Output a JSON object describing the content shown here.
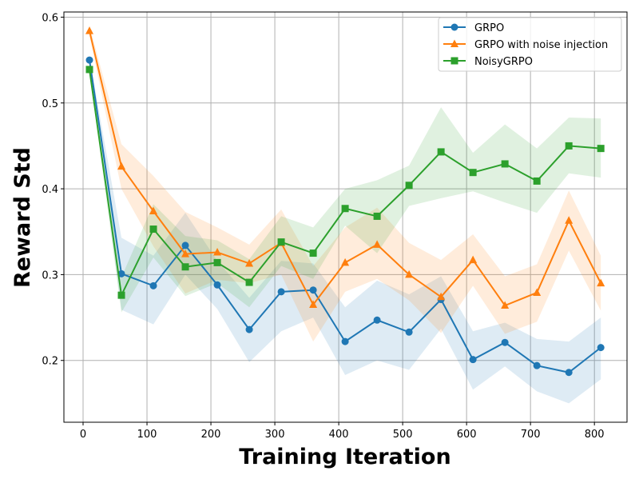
{
  "chart_data": {
    "type": "line",
    "title": "",
    "xlabel": "Training Iteration",
    "ylabel": "Reward Std",
    "xlim": [
      -30,
      851
    ],
    "ylim": [
      0.128,
      0.606
    ],
    "xticks": [
      0,
      100,
      200,
      300,
      400,
      500,
      600,
      700,
      800
    ],
    "yticks": [
      0.2,
      0.3,
      0.4,
      0.5,
      0.6
    ],
    "ytick_labels": [
      "0.2",
      "0.3",
      "0.4",
      "0.5",
      "0.6"
    ],
    "grid": true,
    "legend_position": "top-right",
    "x": [
      10,
      60,
      110,
      160,
      210,
      260,
      310,
      360,
      410,
      460,
      510,
      560,
      610,
      660,
      710,
      760,
      810
    ],
    "series": [
      {
        "name": "GRPO",
        "color": "#1f77b4",
        "marker": "circle",
        "values": [
          0.55,
          0.301,
          0.287,
          0.334,
          0.288,
          0.236,
          0.28,
          0.282,
          0.222,
          0.247,
          0.233,
          0.271,
          0.201,
          0.221,
          0.194,
          0.186,
          0.215
        ],
        "upper": [
          0.553,
          0.343,
          0.322,
          0.372,
          0.316,
          0.273,
          0.316,
          0.313,
          0.262,
          0.293,
          0.277,
          0.298,
          0.234,
          0.244,
          0.225,
          0.222,
          0.25
        ],
        "lower": [
          0.547,
          0.259,
          0.242,
          0.3,
          0.26,
          0.198,
          0.234,
          0.25,
          0.183,
          0.2,
          0.189,
          0.237,
          0.166,
          0.193,
          0.164,
          0.15,
          0.178
        ]
      },
      {
        "name": "GRPO with noise injection",
        "color": "#ff7f0e",
        "marker": "triangle",
        "values": [
          0.584,
          0.426,
          0.374,
          0.324,
          0.326,
          0.313,
          0.337,
          0.265,
          0.314,
          0.335,
          0.3,
          0.274,
          0.317,
          0.264,
          0.279,
          0.363,
          0.29
        ],
        "upper": [
          0.59,
          0.452,
          0.415,
          0.373,
          0.355,
          0.335,
          0.376,
          0.31,
          0.355,
          0.378,
          0.337,
          0.317,
          0.347,
          0.298,
          0.312,
          0.398,
          0.322
        ],
        "lower": [
          0.578,
          0.4,
          0.333,
          0.278,
          0.294,
          0.29,
          0.3,
          0.222,
          0.28,
          0.295,
          0.27,
          0.232,
          0.287,
          0.231,
          0.245,
          0.328,
          0.258
        ]
      },
      {
        "name": "NoisyGRPO",
        "color": "#2ca02c",
        "marker": "square",
        "values": [
          0.539,
          0.276,
          0.353,
          0.309,
          0.314,
          0.291,
          0.338,
          0.325,
          0.377,
          0.368,
          0.404,
          0.443,
          0.419,
          0.429,
          0.409,
          0.45,
          0.447
        ],
        "upper": [
          0.545,
          0.297,
          0.382,
          0.345,
          0.34,
          0.318,
          0.368,
          0.355,
          0.4,
          0.41,
          0.427,
          0.495,
          0.442,
          0.475,
          0.447,
          0.483,
          0.482
        ],
        "lower": [
          0.535,
          0.256,
          0.32,
          0.275,
          0.29,
          0.262,
          0.31,
          0.295,
          0.357,
          0.325,
          0.38,
          0.389,
          0.397,
          0.384,
          0.372,
          0.418,
          0.413
        ]
      }
    ]
  }
}
